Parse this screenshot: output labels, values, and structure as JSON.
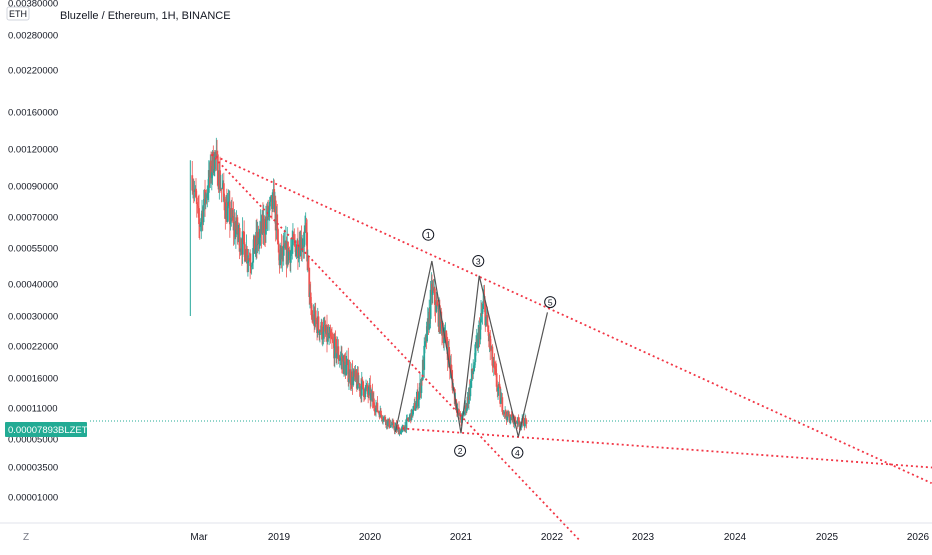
{
  "header": {
    "title": "Bluzelle / Ethereum, 1H, BINANCE",
    "currency_badge": "ETH"
  },
  "toolbar": {
    "log_button": "Z"
  },
  "colors": {
    "up": "#26a69a",
    "down": "#ef5350",
    "trendline": "#f23645",
    "wave": "#555555",
    "axis_text": "#131722",
    "last_price_bg": "#22ab94"
  },
  "chart_data": {
    "type": "candlestick",
    "title": "Bluzelle / Ethereum, 1H, BINANCE",
    "symbol": "BLZETH",
    "y_scale": "log",
    "last_price": "0.00007893",
    "last_price_value": 7.893e-05,
    "price_ticks": [
      {
        "label": "0.00380000",
        "value": 0.0038
      },
      {
        "label": "0.00280000",
        "value": 0.0028
      },
      {
        "label": "0.00220000",
        "value": 0.0022
      },
      {
        "label": "0.00160000",
        "value": 0.0016
      },
      {
        "label": "0.00120000",
        "value": 0.0012
      },
      {
        "label": "0.00090000",
        "value": 0.0009
      },
      {
        "label": "0.00070000",
        "value": 0.0007
      },
      {
        "label": "0.00055000",
        "value": 0.00055
      },
      {
        "label": "0.00040000",
        "value": 0.0004
      },
      {
        "label": "0.00030000",
        "value": 0.0003
      },
      {
        "label": "0.00022000",
        "value": 0.00022
      },
      {
        "label": "0.00016000",
        "value": 0.00016
      },
      {
        "label": "0.00011000",
        "value": 0.00011
      },
      {
        "label": "0.00005000",
        "value": 5e-05
      },
      {
        "label": "0.00003500",
        "value": 3.5e-05
      },
      {
        "label": "0.00001000",
        "value": 1e-05
      }
    ],
    "time_ticks": [
      {
        "label": "Mar",
        "t": 2018.17
      },
      {
        "label": "2019",
        "t": 2019.0
      },
      {
        "label": "2020",
        "t": 2020.0
      },
      {
        "label": "2021",
        "t": 2021.0
      },
      {
        "label": "2022",
        "t": 2022.0
      },
      {
        "label": "2023",
        "t": 2023.0
      },
      {
        "label": "2024",
        "t": 2024.0
      },
      {
        "label": "2025",
        "t": 2025.0
      },
      {
        "label": "2026",
        "t": 2026.0
      }
    ],
    "key_prices": [
      {
        "t": 2018.08,
        "price": 0.0003
      },
      {
        "t": 2018.08,
        "price": 0.0011
      },
      {
        "t": 2018.17,
        "price": 0.00065
      },
      {
        "t": 2018.33,
        "price": 0.00115
      },
      {
        "t": 2018.45,
        "price": 0.00075
      },
      {
        "t": 2018.7,
        "price": 0.0005
      },
      {
        "t": 2018.95,
        "price": 0.0008
      },
      {
        "t": 2019.0,
        "price": 0.0005
      },
      {
        "t": 2019.3,
        "price": 0.0006
      },
      {
        "t": 2019.35,
        "price": 0.0003
      },
      {
        "t": 2019.6,
        "price": 0.00022
      },
      {
        "t": 2019.8,
        "price": 0.00016
      },
      {
        "t": 2020.0,
        "price": 0.00013
      },
      {
        "t": 2020.2,
        "price": 7.5e-05
      },
      {
        "t": 2020.35,
        "price": 6e-05
      },
      {
        "t": 2020.55,
        "price": 0.00014
      },
      {
        "t": 2020.68,
        "price": 0.00038
      },
      {
        "t": 2020.85,
        "price": 0.00022
      },
      {
        "t": 2021.0,
        "price": 8e-05
      },
      {
        "t": 2021.25,
        "price": 0.00034
      },
      {
        "t": 2021.35,
        "price": 0.00018
      },
      {
        "t": 2021.5,
        "price": 9e-05
      },
      {
        "t": 2021.65,
        "price": 7.5e-05
      },
      {
        "t": 2021.72,
        "price": 7.9e-05
      }
    ],
    "trendlines": [
      {
        "name": "upper-resistance",
        "from": {
          "t": 2018.3,
          "price": 0.00115
        },
        "to": {
          "t": 2026.15,
          "price": 1.78e-05
        }
      },
      {
        "name": "steep-resistance",
        "from": {
          "t": 2018.3,
          "price": 0.00115
        },
        "to": {
          "t": 2022.3,
          "price": 8e-07
        }
      },
      {
        "name": "lower-support",
        "from": {
          "t": 2020.3,
          "price": 6.6e-05
        },
        "to": {
          "t": 2026.2,
          "price": 3.38e-05
        }
      }
    ],
    "wave_path": [
      {
        "t": 2020.28,
        "price": 6e-05
      },
      {
        "t": 2020.68,
        "price": 0.00049
      },
      {
        "t": 2021.0,
        "price": 5.8e-05
      },
      {
        "t": 2021.2,
        "price": 0.00043
      },
      {
        "t": 2021.63,
        "price": 5.3e-05
      },
      {
        "t": 2021.95,
        "price": 0.00031
      }
    ],
    "wave_labels": [
      {
        "label": "1",
        "t": 2020.64,
        "price": 0.00061
      },
      {
        "label": "2",
        "t": 2020.99,
        "price": 4.3e-05
      },
      {
        "label": "3",
        "t": 2021.19,
        "price": 0.00049
      },
      {
        "label": "4",
        "t": 2021.62,
        "price": 4.2e-05
      },
      {
        "label": "5",
        "t": 2021.98,
        "price": 0.00034
      }
    ]
  }
}
